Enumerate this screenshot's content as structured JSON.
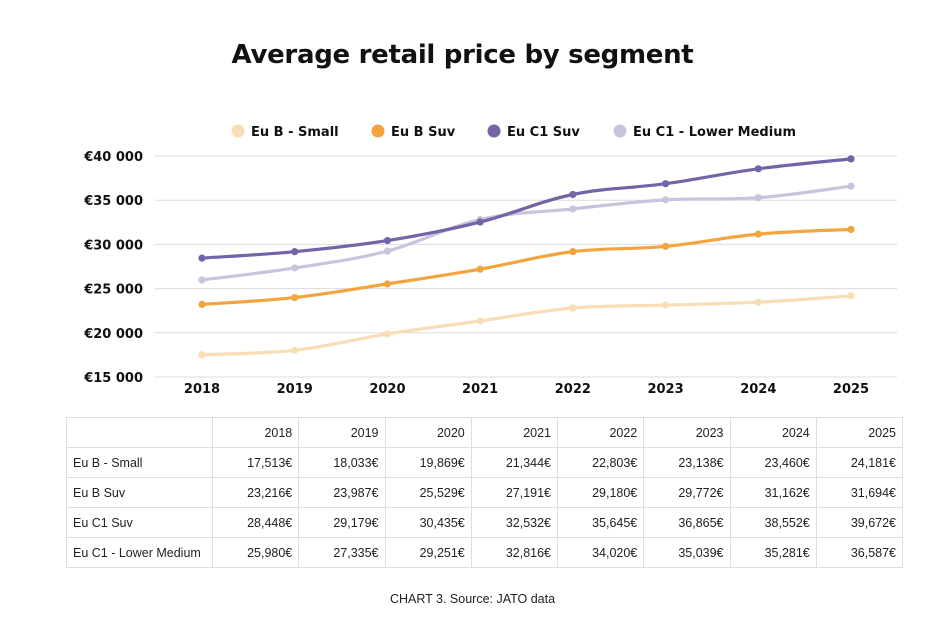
{
  "chart_data": {
    "type": "line",
    "title": "Average retail price by segment",
    "xlabel": "",
    "ylabel": "",
    "x": [
      "2018",
      "2019",
      "2020",
      "2021",
      "2022",
      "2023",
      "2024",
      "2025"
    ],
    "ylim": [
      15000,
      40000
    ],
    "yticks": [
      15000,
      20000,
      25000,
      30000,
      35000,
      40000
    ],
    "ytick_labels": [
      "€15 000",
      "€20 000",
      "€25 000",
      "€30 000",
      "€35 000",
      "€40 000"
    ],
    "legend_position": "top",
    "grid": true,
    "series": [
      {
        "name": "Eu B - Small",
        "color": "#F8DDB5",
        "values": [
          17513,
          18033,
          19869,
          21344,
          22803,
          23138,
          23460,
          24181
        ]
      },
      {
        "name": "Eu B Suv",
        "color": "#F2A53F",
        "values": [
          23216,
          23987,
          25529,
          27191,
          29180,
          29772,
          31162,
          31694
        ]
      },
      {
        "name": "Eu C1 Suv",
        "color": "#7463A6",
        "values": [
          28448,
          29179,
          30435,
          32532,
          35645,
          36865,
          38552,
          39672
        ]
      },
      {
        "name": "Eu C1 - Lower Medium",
        "color": "#C9C3DE",
        "values": [
          25980,
          27335,
          29251,
          32816,
          34020,
          35039,
          35281,
          36587
        ]
      }
    ]
  },
  "table": {
    "headers": [
      "",
      "2018",
      "2019",
      "2020",
      "2021",
      "2022",
      "2023",
      "2024",
      "2025"
    ],
    "rows": [
      {
        "label": "Eu B - Small",
        "cells": [
          "17,513€",
          "18,033€",
          "19,869€",
          "21,344€",
          "22,803€",
          "23,138€",
          "23,460€",
          "24,181€"
        ]
      },
      {
        "label": "Eu B Suv",
        "cells": [
          "23,216€",
          "23,987€",
          "25,529€",
          "27,191€",
          "29,180€",
          "29,772€",
          "31,162€",
          "31,694€"
        ]
      },
      {
        "label": "Eu C1 Suv",
        "cells": [
          "28,448€",
          "29,179€",
          "30,435€",
          "32,532€",
          "35,645€",
          "36,865€",
          "38,552€",
          "39,672€"
        ]
      },
      {
        "label": "Eu C1 - Lower Medium",
        "cells": [
          "25,980€",
          "27,335€",
          "29,251€",
          "32,816€",
          "34,020€",
          "35,039€",
          "35,281€",
          "36,587€"
        ]
      }
    ]
  },
  "caption": "CHART 3. Source: JATO data"
}
